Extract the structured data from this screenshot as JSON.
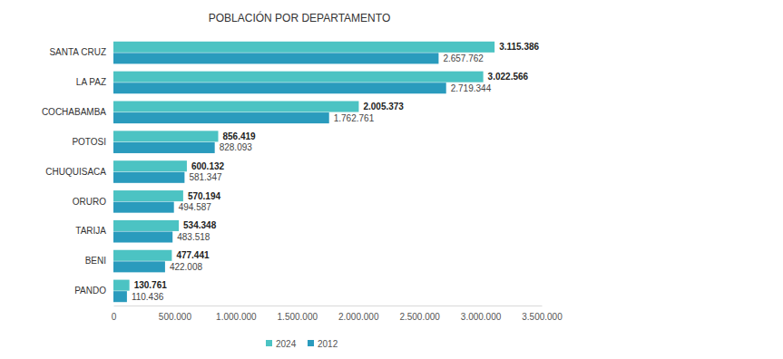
{
  "chart_data": {
    "type": "bar",
    "orientation": "horizontal",
    "title": "POBLACIÓN POR DEPARTAMENTO",
    "categories": [
      "SANTA CRUZ",
      "LA PAZ",
      "COCHABAMBA",
      "POTOSI",
      "CHUQUISACA",
      "ORURO",
      "TARIJA",
      "BENI",
      "PANDO"
    ],
    "series": [
      {
        "name": "2024",
        "color": "#4cc3c3",
        "values": [
          3115386,
          3022566,
          2005373,
          856419,
          600132,
          570194,
          534348,
          477441,
          130761
        ],
        "value_labels": [
          "3.115.386",
          "3.022.566",
          "2.005.373",
          "856.419",
          "600.132",
          "570.194",
          "534.348",
          "477.441",
          "130.761"
        ]
      },
      {
        "name": "2012",
        "color": "#2a9bbd",
        "values": [
          2657762,
          2719344,
          1762761,
          828093,
          581347,
          494587,
          483518,
          422008,
          110436
        ],
        "value_labels": [
          "2.657.762",
          "2.719.344",
          "1.762.761",
          "828.093",
          "581.347",
          "494.587",
          "483.518",
          "422.008",
          "110.436"
        ]
      }
    ],
    "xlim": [
      0,
      3500000
    ],
    "xticks": [
      0,
      {
        "value": 500000,
        "label": "500.000"
      },
      {
        "value": 1000000,
        "label": "1.000.000"
      },
      {
        "value": 1500000,
        "label": "1.500.000"
      },
      {
        "value": 2000000,
        "label": "2.000.000"
      },
      {
        "value": 2500000,
        "label": "2.500.000"
      },
      {
        "value": 3000000,
        "label": "3.000.000"
      },
      {
        "value": 3500000,
        "label": "3.500.000"
      }
    ],
    "grid": false,
    "legend": "bottom",
    "data_labels": true
  }
}
